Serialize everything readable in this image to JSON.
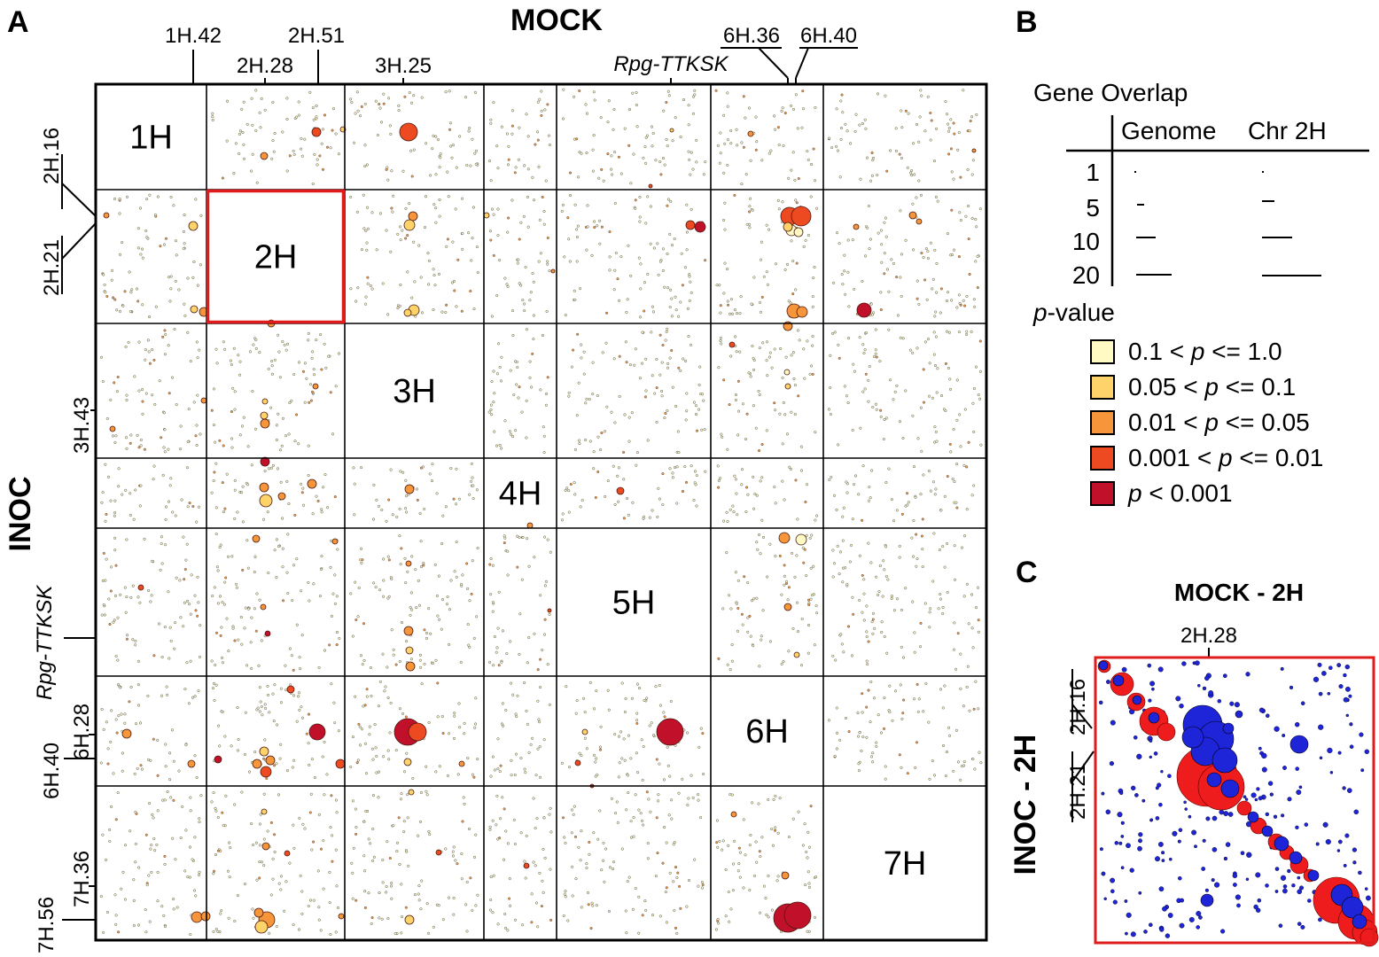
{
  "panel_a": {
    "letter": "A",
    "x_title": "MOCK",
    "y_title": "INOC",
    "chromosomes": [
      "1H",
      "2H",
      "3H",
      "4H",
      "5H",
      "6H",
      "7H"
    ],
    "top_markers": [
      "1H.42",
      "2H.51",
      "2H.28",
      "3H.25",
      "6H.36",
      "6H.40",
      "Rpg-TTKSK"
    ],
    "left_markers": [
      "2H.16",
      "2H.21",
      "3H.43",
      "Rpg-TTKSK",
      "6H.28",
      "6H.40",
      "7H.36",
      "7H.56"
    ],
    "highlighted_block": "2H"
  },
  "panel_b": {
    "letter": "B",
    "title": "Gene Overlap",
    "col_headers": [
      "Genome",
      "Chr 2H"
    ],
    "overlap_rows": [
      "1",
      "5",
      "10",
      "20"
    ],
    "pvalue_label_p": "p",
    "pvalue_label_rest": "-value",
    "pvalue_classes": [
      {
        "pre": "0.1 < ",
        "p": "p",
        "post": " <= 1.0",
        "color": "#FFF9C4"
      },
      {
        "pre": "0.05 < ",
        "p": "p",
        "post": " <= 0.1",
        "color": "#FDD36A"
      },
      {
        "pre": "0.01 < ",
        "p": "p",
        "post": " <= 0.05",
        "color": "#F7953A"
      },
      {
        "pre": "0.001 < ",
        "p": "p",
        "post": " <= 0.01",
        "color": "#EE4A22"
      },
      {
        "pre": " ",
        "p": "p",
        "post": " < 0.001",
        "color": "#C0102A"
      }
    ]
  },
  "panel_c": {
    "letter": "C",
    "title": "MOCK - 2H",
    "y_title": "INOC - 2H",
    "top_marker": "2H.28",
    "left_markers": [
      "2H.16",
      "2H.21"
    ],
    "colors": {
      "mock": "#EE1C1C",
      "inoc": "#1E24D8",
      "frame": "#E01B1B"
    }
  }
}
